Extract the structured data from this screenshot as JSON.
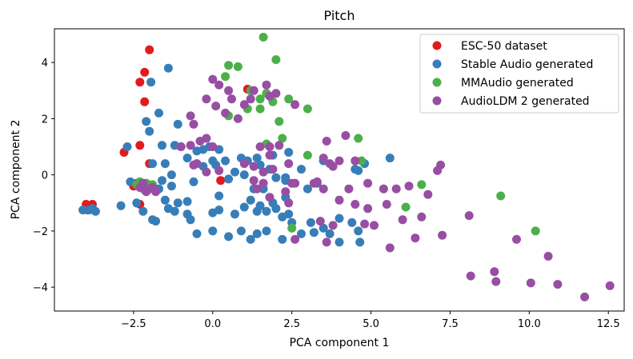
{
  "chart_data": {
    "type": "scatter",
    "title": "Pitch",
    "xlabel": "PCA component 1",
    "ylabel": "PCA component 2",
    "xlim": [
      -5.0,
      13.0
    ],
    "ylim": [
      -4.85,
      5.2
    ],
    "xticks": [
      -2.5,
      0.0,
      2.5,
      5.0,
      7.5,
      10.0,
      12.5
    ],
    "xtick_labels": [
      "−2.5",
      "0.0",
      "2.5",
      "5.0",
      "7.5",
      "10.0",
      "12.5"
    ],
    "yticks": [
      -4,
      -2,
      0,
      2,
      4
    ],
    "ytick_labels": [
      "−4",
      "−2",
      "0",
      "2",
      "4"
    ],
    "grid": false,
    "legend_position": "top-right",
    "series": [
      {
        "name": "ESC-50 dataset",
        "color": "#e41a1c",
        "points": [
          [
            -2.0,
            4.45
          ],
          [
            -2.15,
            3.65
          ],
          [
            -2.3,
            3.3
          ],
          [
            -2.15,
            2.6
          ],
          [
            -2.3,
            1.05
          ],
          [
            -2.8,
            0.8
          ],
          [
            -2.0,
            0.4
          ],
          [
            -3.8,
            -1.05
          ],
          [
            -4.0,
            -1.05
          ],
          [
            -3.95,
            -1.25
          ],
          [
            -2.4,
            -0.3
          ],
          [
            -2.5,
            -0.4
          ],
          [
            -2.0,
            -0.45
          ],
          [
            -2.3,
            -1.05
          ],
          [
            1.1,
            3.05
          ],
          [
            0.25,
            -0.2
          ]
        ]
      },
      {
        "name": "Stable Audio generated",
        "color": "#377eb8",
        "points": [
          [
            -1.4,
            3.8
          ],
          [
            -1.95,
            3.3
          ],
          [
            -1.7,
            2.2
          ],
          [
            -2.1,
            1.9
          ],
          [
            -2.0,
            1.55
          ],
          [
            -1.1,
            1.8
          ],
          [
            -1.6,
            1.05
          ],
          [
            -1.2,
            1.05
          ],
          [
            -1.0,
            1.0
          ],
          [
            -2.7,
            1.0
          ],
          [
            -0.5,
            0.85
          ],
          [
            -0.3,
            0.9
          ],
          [
            -0.1,
            1.0
          ],
          [
            -0.8,
            0.6
          ],
          [
            -1.5,
            0.4
          ],
          [
            -1.9,
            0.4
          ],
          [
            0.0,
            0.5
          ],
          [
            -0.6,
            0.35
          ],
          [
            -0.3,
            0.3
          ],
          [
            0.1,
            0.35
          ],
          [
            0.2,
            0.9
          ],
          [
            -1.3,
            0.0
          ],
          [
            -1.6,
            -0.2
          ],
          [
            -1.7,
            -0.5
          ],
          [
            -1.3,
            -0.4
          ],
          [
            -0.6,
            -0.25
          ],
          [
            -2.6,
            -0.25
          ],
          [
            -2.1,
            -0.3
          ],
          [
            -1.8,
            -0.5
          ],
          [
            -1.5,
            -0.9
          ],
          [
            -1.1,
            -1.0
          ],
          [
            -0.8,
            -0.95
          ],
          [
            -1.4,
            -1.2
          ],
          [
            -1.2,
            -1.3
          ],
          [
            -0.8,
            -1.4
          ],
          [
            -0.7,
            -1.6
          ],
          [
            -0.5,
            -2.1
          ],
          [
            -1.8,
            -1.65
          ],
          [
            -1.9,
            -1.6
          ],
          [
            -2.2,
            -1.3
          ],
          [
            -2.4,
            -1.0
          ],
          [
            -2.9,
            -1.1
          ],
          [
            -3.7,
            -1.3
          ],
          [
            -3.9,
            -1.25
          ],
          [
            -4.1,
            -1.25
          ],
          [
            -3.8,
            -1.2
          ],
          [
            0.0,
            -1.35
          ],
          [
            0.2,
            -1.25
          ],
          [
            0.2,
            -0.75
          ],
          [
            0.5,
            -0.15
          ],
          [
            0.7,
            0.1
          ],
          [
            0.4,
            0.5
          ],
          [
            0.9,
            0.6
          ],
          [
            1.1,
            0.5
          ],
          [
            1.4,
            0.6
          ],
          [
            1.9,
            0.7
          ],
          [
            2.4,
            0.8
          ],
          [
            1.5,
            0.35
          ],
          [
            1.8,
            0.2
          ],
          [
            2.0,
            -0.1
          ],
          [
            2.3,
            -0.1
          ],
          [
            1.3,
            -0.5
          ],
          [
            1.6,
            -0.5
          ],
          [
            1.2,
            -0.9
          ],
          [
            1.5,
            -1.1
          ],
          [
            1.9,
            -1.0
          ],
          [
            2.3,
            -0.8
          ],
          [
            2.0,
            -1.2
          ],
          [
            2.4,
            -1.4
          ],
          [
            1.7,
            -1.3
          ],
          [
            1.4,
            -1.3
          ],
          [
            1.0,
            -1.15
          ],
          [
            0.7,
            -1.4
          ],
          [
            0.9,
            -2.0
          ],
          [
            1.2,
            -2.3
          ],
          [
            1.4,
            -2.1
          ],
          [
            1.7,
            -2.0
          ],
          [
            2.2,
            -1.5
          ],
          [
            2.5,
            -1.7
          ],
          [
            2.8,
            -2.1
          ],
          [
            3.1,
            -1.7
          ],
          [
            3.2,
            -2.05
          ],
          [
            3.5,
            -1.9
          ],
          [
            3.7,
            -2.1
          ],
          [
            4.0,
            -1.55
          ],
          [
            4.4,
            -1.7
          ],
          [
            4.6,
            -2.0
          ],
          [
            4.65,
            -2.4
          ],
          [
            4.0,
            -2.4
          ],
          [
            2.2,
            -2.3
          ],
          [
            3.0,
            -0.5
          ],
          [
            3.3,
            -0.3
          ],
          [
            2.8,
            0.2
          ],
          [
            3.5,
            0.5
          ],
          [
            4.5,
            0.2
          ],
          [
            4.8,
            0.4
          ],
          [
            5.6,
            0.6
          ],
          [
            4.6,
            0.15
          ],
          [
            0.0,
            -2.0
          ],
          [
            0.5,
            -2.2
          ],
          [
            2.3,
            -0.2
          ],
          [
            1.0,
            0.0
          ]
        ]
      },
      {
        "name": "MMAudio generated",
        "color": "#4daf4a",
        "points": [
          [
            1.6,
            4.9
          ],
          [
            2.0,
            4.1
          ],
          [
            0.5,
            3.9
          ],
          [
            0.8,
            3.85
          ],
          [
            0.4,
            3.5
          ],
          [
            1.2,
            3.0
          ],
          [
            1.5,
            2.7
          ],
          [
            1.7,
            2.9
          ],
          [
            1.9,
            2.6
          ],
          [
            2.4,
            2.7
          ],
          [
            1.1,
            2.35
          ],
          [
            1.5,
            2.35
          ],
          [
            0.5,
            2.1
          ],
          [
            2.1,
            1.9
          ],
          [
            3.0,
            2.35
          ],
          [
            2.2,
            1.3
          ],
          [
            1.7,
            1.1
          ],
          [
            3.0,
            0.7
          ],
          [
            4.6,
            1.3
          ],
          [
            4.7,
            0.5
          ],
          [
            2.5,
            -1.9
          ],
          [
            6.1,
            -1.15
          ],
          [
            6.6,
            -0.35
          ],
          [
            9.1,
            -0.75
          ],
          [
            10.2,
            -2.0
          ],
          [
            -2.3,
            -0.25
          ],
          [
            -2.1,
            -0.3
          ],
          [
            -2.0,
            -0.4
          ],
          [
            -1.9,
            -0.35
          ],
          [
            -2.2,
            -0.5
          ],
          [
            -2.4,
            -0.35
          ]
        ]
      },
      {
        "name": "AudioLDM 2 generated",
        "color": "#984ea3",
        "points": [
          [
            0.0,
            3.4
          ],
          [
            0.2,
            3.2
          ],
          [
            0.5,
            3.0
          ],
          [
            0.6,
            2.7
          ],
          [
            1.0,
            2.5
          ],
          [
            1.2,
            2.7
          ],
          [
            1.7,
            3.2
          ],
          [
            1.3,
            3.0
          ],
          [
            -0.2,
            2.7
          ],
          [
            0.1,
            2.45
          ],
          [
            0.4,
            2.2
          ],
          [
            -0.7,
            2.1
          ],
          [
            -0.6,
            1.8
          ],
          [
            0.8,
            2.0
          ],
          [
            1.8,
            2.8
          ],
          [
            2.0,
            2.9
          ],
          [
            2.6,
            2.5
          ],
          [
            -0.4,
            1.2
          ],
          [
            -0.2,
            1.3
          ],
          [
            0.0,
            1.0
          ],
          [
            -0.7,
            1.05
          ],
          [
            -1.0,
            1.0
          ],
          [
            -0.5,
            0.4
          ],
          [
            -0.6,
            0.35
          ],
          [
            -0.2,
            0.1
          ],
          [
            0.2,
            0.15
          ],
          [
            1.5,
            1.0
          ],
          [
            1.8,
            1.0
          ],
          [
            2.1,
            1.05
          ],
          [
            1.8,
            0.7
          ],
          [
            1.0,
            0.4
          ],
          [
            1.3,
            0.3
          ],
          [
            1.6,
            0.1
          ],
          [
            1.9,
            0.2
          ],
          [
            2.4,
            0.4
          ],
          [
            3.5,
            0.6
          ],
          [
            3.7,
            0.4
          ],
          [
            4.0,
            0.5
          ],
          [
            4.5,
            0.5
          ],
          [
            3.6,
            1.2
          ],
          [
            4.2,
            1.4
          ],
          [
            3.8,
            0.3
          ],
          [
            1.3,
            -0.2
          ],
          [
            1.6,
            -0.3
          ],
          [
            2.5,
            -0.3
          ],
          [
            3.3,
            -0.25
          ],
          [
            3.5,
            -0.5
          ],
          [
            3.2,
            -0.3
          ],
          [
            2.6,
            -0.3
          ],
          [
            2.3,
            -0.6
          ],
          [
            2.4,
            -1.0
          ],
          [
            1.4,
            -0.5
          ],
          [
            1.8,
            -0.8
          ],
          [
            4.3,
            -0.5
          ],
          [
            4.9,
            -0.3
          ],
          [
            5.4,
            -0.5
          ],
          [
            5.8,
            -0.5
          ],
          [
            6.2,
            -0.4
          ],
          [
            6.8,
            -0.7
          ],
          [
            6.6,
            -1.5
          ],
          [
            6.0,
            -1.6
          ],
          [
            5.5,
            -1.05
          ],
          [
            4.9,
            -1.2
          ],
          [
            4.5,
            -1.05
          ],
          [
            4.0,
            -0.9
          ],
          [
            3.4,
            -1.65
          ],
          [
            3.8,
            -1.8
          ],
          [
            4.8,
            -1.75
          ],
          [
            5.1,
            -1.8
          ],
          [
            6.4,
            -2.25
          ],
          [
            7.25,
            -2.15
          ],
          [
            5.6,
            -2.6
          ],
          [
            3.6,
            -2.4
          ],
          [
            2.6,
            -2.3
          ],
          [
            7.2,
            0.35
          ],
          [
            7.1,
            0.15
          ],
          [
            8.1,
            -1.45
          ],
          [
            8.9,
            -3.45
          ],
          [
            8.15,
            -3.6
          ],
          [
            8.95,
            -3.8
          ],
          [
            9.6,
            -2.3
          ],
          [
            10.6,
            -2.9
          ],
          [
            10.05,
            -3.85
          ],
          [
            10.9,
            -3.9
          ],
          [
            11.75,
            -4.35
          ],
          [
            12.55,
            -3.95
          ],
          [
            -2.0,
            -0.5
          ],
          [
            -1.8,
            -0.6
          ],
          [
            -2.1,
            -0.6
          ],
          [
            -2.3,
            -0.45
          ],
          [
            -1.9,
            -0.45
          ],
          [
            -2.2,
            -0.3
          ]
        ]
      }
    ]
  }
}
